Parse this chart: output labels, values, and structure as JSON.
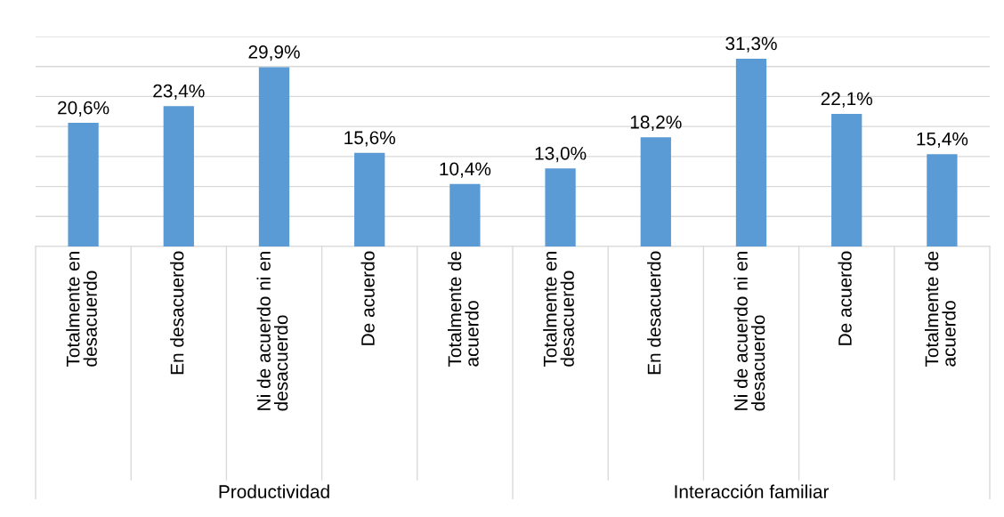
{
  "chart_data": {
    "type": "bar",
    "categories": [
      "Totalmente en\ndesacuerdo",
      "En desacuerdo",
      "Ni de acuerdo ni en\ndesacuerdo",
      "De acuerdo",
      "Totalmente de\nacuerdo",
      "Totalmente en\ndesacuerdo",
      "En desacuerdo",
      "Ni de acuerdo ni en\ndesacuerdo",
      "De acuerdo",
      "Totalmente de\nacuerdo"
    ],
    "values": [
      20.6,
      23.4,
      29.9,
      15.6,
      10.4,
      13.0,
      18.2,
      31.3,
      22.1,
      15.4
    ],
    "value_labels": [
      "20,6%",
      "23,4%",
      "29,9%",
      "15,6%",
      "10,4%",
      "13,0%",
      "18,2%",
      "31,3%",
      "22,1%",
      "15,4%"
    ],
    "color": "#5b9bd5",
    "ylim": [
      0,
      35
    ],
    "yticks": [
      {
        "value": 0,
        "label": null
      },
      {
        "value": 5,
        "label": null
      },
      {
        "value": 10,
        "label": null
      },
      {
        "value": 15,
        "label": null
      },
      {
        "value": 20,
        "label": null
      },
      {
        "value": 25,
        "label": null
      },
      {
        "value": 30,
        "label": null
      },
      {
        "value": 35,
        "label": null
      }
    ],
    "grid": "y",
    "tick_labels": "x",
    "annotations": [
      "Productividad",
      "Interacción familiar"
    ]
  }
}
